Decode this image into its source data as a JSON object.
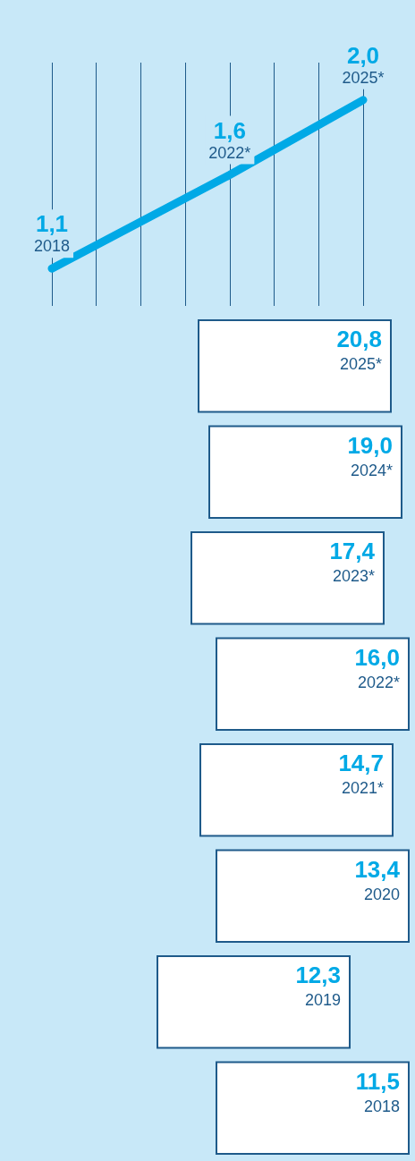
{
  "chart_data": [
    {
      "type": "line",
      "categories": [
        null,
        null,
        null,
        null,
        null,
        null,
        null,
        null
      ],
      "values": [
        1.1,
        null,
        null,
        null,
        1.6,
        null,
        null,
        2.0
      ],
      "value_labels": [
        "1,1",
        null,
        null,
        null,
        "1,6",
        null,
        null,
        "2,0"
      ],
      "color": "#00a9e6",
      "annotations": [
        "2018",
        "2022*",
        "2025*"
      ],
      "ylim": [
        0.9,
        2.2
      ],
      "grid": "x",
      "marker": "none"
    },
    {
      "type": "other",
      "categories": [
        "2025*",
        "2024*",
        "2023*",
        "2022*",
        "2021*",
        "2020",
        "2019",
        "2018"
      ],
      "value_labels": [
        "20,8",
        "19,0",
        "17,4",
        "16,0",
        "14,7",
        "13,4",
        "12,3",
        "11,5"
      ]
    }
  ]
}
